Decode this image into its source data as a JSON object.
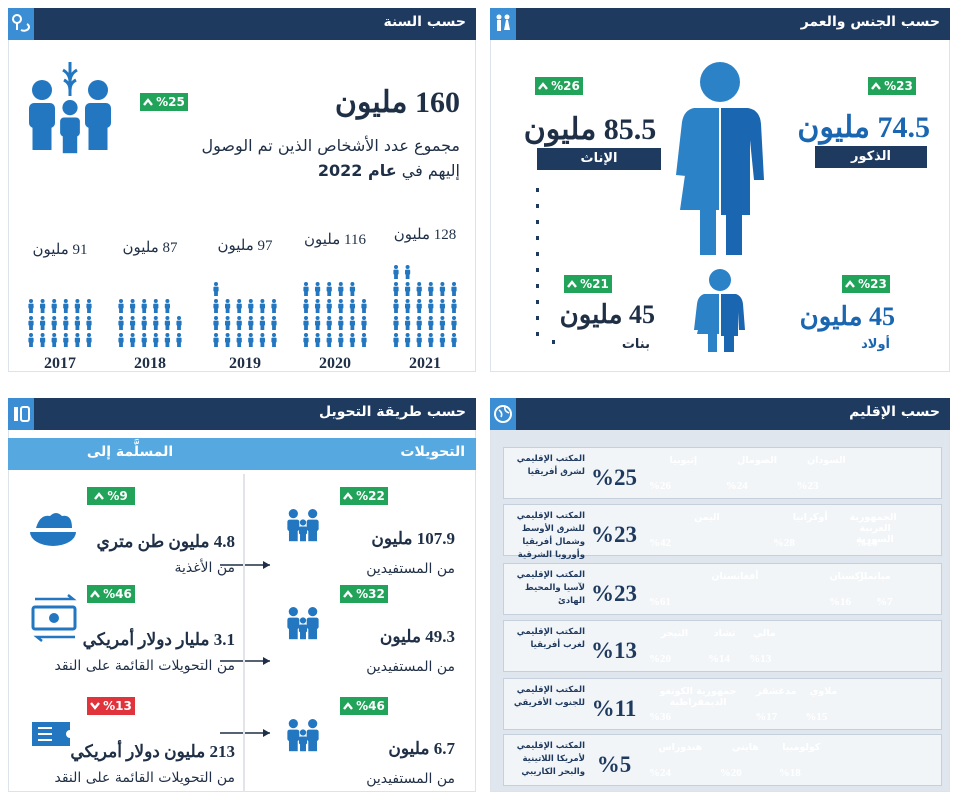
{
  "by_year": {
    "title": "حسب السنة",
    "total": "160 مليون",
    "change": "%25",
    "description": "مجموع عدد الأشخاص الذين تم الوصول إليهم في",
    "description_year": "عام 2022",
    "years": [
      {
        "year": "2017",
        "value": 91,
        "value_label": "91 مليون"
      },
      {
        "year": "2018",
        "value": 87,
        "value_label": "87 مليون"
      },
      {
        "year": "2019",
        "value": 97,
        "value_label": "97 مليون"
      },
      {
        "year": "2020",
        "value": 116,
        "value_label": "116 مليون"
      },
      {
        "year": "2021",
        "value": 128,
        "value_label": "128 مليون"
      }
    ]
  },
  "by_gender_age": {
    "title": "حسب الجنس والعمر",
    "male": {
      "value": "74.5 مليون",
      "label": "الذكور",
      "change": "%23"
    },
    "female": {
      "value": "85.5 مليون",
      "label": "الإناث",
      "change": "%26"
    },
    "boys": {
      "value": "45 مليون",
      "label": "أولاد",
      "change": "%23"
    },
    "girls": {
      "value": "45 مليون",
      "label": "بنات",
      "change": "%21"
    }
  },
  "by_modality": {
    "title": "حسب طريقة التحويل",
    "col_transfers": "التحويلات",
    "col_delivered": "المسلَّمة إلى",
    "rows": [
      {
        "beneficiaries": "107.9 مليون",
        "beneficiaries_label": "من المستفيدين",
        "beneficiaries_change": "%22",
        "delivered": "4.8 مليون طن متري",
        "delivered_label": "من الأغذية",
        "delivered_change": "%9",
        "delivered_trend": "up"
      },
      {
        "beneficiaries": "49.3 مليون",
        "beneficiaries_label": "من المستفيدين",
        "beneficiaries_change": "%32",
        "delivered": "3.1 مليار دولار أمريكي",
        "delivered_label": "من التحويلات القائمة على النقد",
        "delivered_change": "%46",
        "delivered_trend": "up"
      },
      {
        "beneficiaries": "6.7 مليون",
        "beneficiaries_label": "من المستفيدين",
        "beneficiaries_change": "%46",
        "delivered": "213 مليون دولار أمريكي",
        "delivered_label": "من التحويلات القائمة على النقد",
        "delivered_change": "%13",
        "delivered_trend": "down"
      }
    ]
  },
  "by_region": {
    "title": "حسب الإقليم",
    "regions": [
      {
        "name": "المكتب الإقليمي لشرق أفريقيا",
        "share": "%25",
        "countries": [
          {
            "name": "إثيوبيا",
            "value": 26,
            "value_label": "%26"
          },
          {
            "name": "الصومال",
            "value": 24,
            "value_label": "%24"
          },
          {
            "name": "السودان",
            "value": 23,
            "value_label": "%23"
          }
        ]
      },
      {
        "name": "المكتب الإقليمي للشرق الأوسط وشمال أفريقيا وأوروبا الشرقية",
        "share": "%23",
        "countries": [
          {
            "name": "اليمن",
            "value": 42,
            "value_label": "%42"
          },
          {
            "name": "أوكرانيا",
            "value": 28,
            "value_label": "%28"
          },
          {
            "name": "الجمهورية العربية السورية",
            "value": 16,
            "value_label": "%16"
          }
        ]
      },
      {
        "name": "المكتب الإقليمي لآسيا والمحيط الهادئ",
        "share": "%23",
        "countries": [
          {
            "name": "أفغانستان",
            "value": 61,
            "value_label": "%61"
          },
          {
            "name": "باكستان",
            "value": 16,
            "value_label": "%16"
          },
          {
            "name": "ميانمار",
            "value": 7,
            "value_label": "%7"
          }
        ]
      },
      {
        "name": "المكتب الإقليمي لغرب أفريقيا",
        "share": "%13",
        "countries": [
          {
            "name": "النيجر",
            "value": 20,
            "value_label": "%20"
          },
          {
            "name": "تشاد",
            "value": 14,
            "value_label": "%14"
          },
          {
            "name": "مالي",
            "value": 13,
            "value_label": "%13"
          }
        ]
      },
      {
        "name": "المكتب الإقليمي للجنوب الأفريقي",
        "share": "%11",
        "countries": [
          {
            "name": "جمهورية الكونغو الديمقراطية",
            "value": 36,
            "value_label": "%36"
          },
          {
            "name": "مدغشقر",
            "value": 17,
            "value_label": "%17"
          },
          {
            "name": "ملاوي",
            "value": 15,
            "value_label": "%15"
          }
        ]
      },
      {
        "name": "المكتب الإقليمي لأمريكا اللاتينية والبحر الكاريبي",
        "share": "%5",
        "countries": [
          {
            "name": "هندوراس",
            "value": 24,
            "value_label": "%24"
          },
          {
            "name": "هايتي",
            "value": 20,
            "value_label": "%20"
          },
          {
            "name": "كولومبيا",
            "value": 18,
            "value_label": "%18"
          }
        ]
      }
    ]
  }
}
